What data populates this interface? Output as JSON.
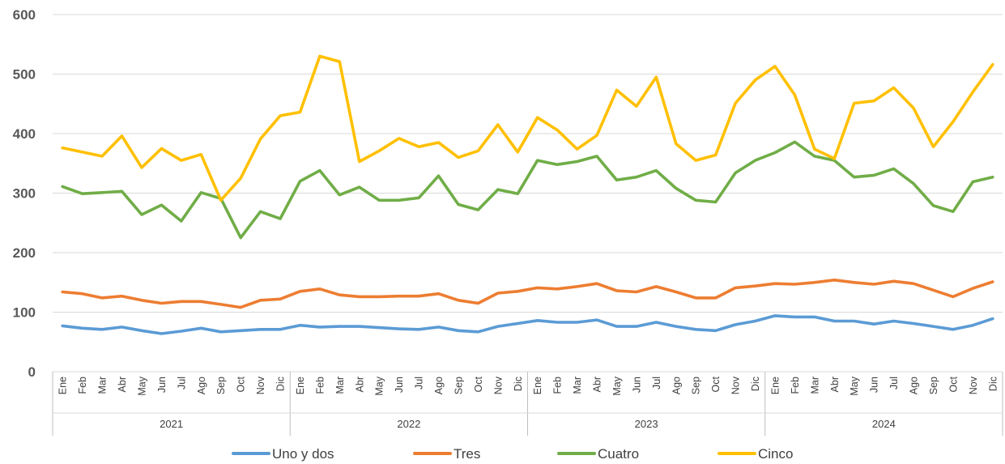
{
  "chart_data": {
    "type": "line",
    "title": "",
    "xlabel": "",
    "ylabel": "",
    "ylim": [
      0,
      600
    ],
    "yticks": [
      0,
      100,
      200,
      300,
      400,
      500,
      600
    ],
    "grid": true,
    "legend": "bottom",
    "months": [
      "Ene",
      "Feb",
      "Mar",
      "Abr",
      "May",
      "Jun",
      "Jul",
      "Ago",
      "Sep",
      "Oct",
      "Nov",
      "Dic"
    ],
    "years": [
      "2021",
      "2022",
      "2023",
      "2024"
    ],
    "series": [
      {
        "name": "Uno y dos",
        "color": "#5B9BD5",
        "values": [
          77,
          73,
          71,
          75,
          69,
          64,
          68,
          73,
          67,
          69,
          71,
          71,
          78,
          75,
          76,
          76,
          74,
          72,
          71,
          75,
          69,
          67,
          76,
          81,
          86,
          83,
          83,
          87,
          76,
          76,
          83,
          76,
          71,
          69,
          79,
          85,
          94,
          92,
          92,
          85,
          85,
          80,
          85,
          81,
          76,
          71,
          78,
          89
        ]
      },
      {
        "name": "Tres",
        "color": "#ED7D31",
        "values": [
          134,
          131,
          124,
          127,
          120,
          115,
          118,
          118,
          113,
          108,
          120,
          122,
          135,
          139,
          129,
          126,
          126,
          127,
          127,
          131,
          120,
          115,
          132,
          135,
          141,
          139,
          143,
          148,
          136,
          134,
          143,
          134,
          124,
          124,
          141,
          144,
          148,
          147,
          150,
          154,
          150,
          147,
          152,
          148,
          137,
          126,
          140,
          151
        ]
      },
      {
        "name": "Cuatro",
        "color": "#70AD47",
        "values": [
          311,
          299,
          301,
          303,
          264,
          280,
          253,
          301,
          291,
          225,
          269,
          257,
          320,
          338,
          297,
          310,
          288,
          288,
          292,
          329,
          281,
          272,
          306,
          299,
          355,
          348,
          353,
          362,
          322,
          327,
          338,
          308,
          288,
          285,
          334,
          355,
          368,
          386,
          362,
          355,
          327,
          330,
          341,
          316,
          279,
          269,
          319,
          327
        ]
      },
      {
        "name": "Cinco",
        "color": "#FFC000",
        "values": [
          376,
          369,
          362,
          396,
          343,
          375,
          355,
          365,
          288,
          325,
          391,
          430,
          436,
          530,
          521,
          353,
          371,
          392,
          378,
          385,
          360,
          371,
          415,
          369,
          427,
          406,
          374,
          397,
          473,
          446,
          495,
          383,
          355,
          364,
          451,
          490,
          513,
          465,
          374,
          358,
          451,
          455,
          477,
          443,
          378,
          420,
          470,
          516
        ]
      }
    ]
  }
}
